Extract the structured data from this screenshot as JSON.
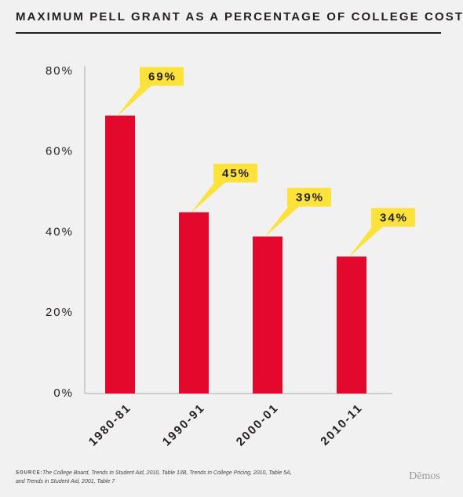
{
  "chart_data": {
    "type": "bar",
    "title": "MAXIMUM PELL GRANT AS A PERCENTAGE OF COLLEGE COSTS",
    "categories": [
      "1980-81",
      "1990-91",
      "2000-01",
      "2010-11"
    ],
    "values": [
      69,
      45,
      39,
      34
    ],
    "value_labels": [
      "69%",
      "45%",
      "39%",
      "34%"
    ],
    "color": "#e2092c",
    "label_color": "#fde23c",
    "ylim": [
      0,
      80
    ],
    "yticks": [
      {
        "value": 0,
        "label": "0%"
      },
      {
        "value": 20,
        "label": "20%"
      },
      {
        "value": 40,
        "label": "40%"
      },
      {
        "value": 60,
        "label": "60%"
      },
      {
        "value": 80,
        "label": "80%"
      }
    ],
    "grid": false,
    "source_label": "SOURCE:",
    "source_lines": [
      "The College Board, Trends in Student Aid, 2010, Table 13B, Trends in College Pricing, 2010, Table 5A,",
      "and Trends in Student Aid, 2001, Table 7"
    ],
    "brand": "Dēmos"
  }
}
